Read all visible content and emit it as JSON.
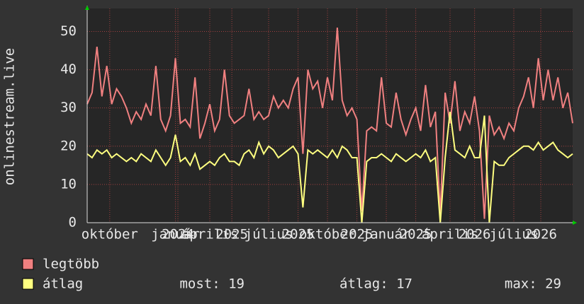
{
  "chart_data": {
    "type": "line",
    "y_label": "onlinestream.live",
    "xlim": [
      0,
      99
    ],
    "xticks": [
      {
        "value": 4.6,
        "label": "október"
      },
      {
        "value": 18,
        "label": "január"
      },
      {
        "value": 18.5,
        "label": "2024"
      },
      {
        "value": 25,
        "label": "április"
      },
      {
        "value": 29.5,
        "label": "2025"
      },
      {
        "value": 37,
        "label": "július"
      },
      {
        "value": 43,
        "label": "2025"
      },
      {
        "value": 49,
        "label": "október"
      },
      {
        "value": 55,
        "label": "2025"
      },
      {
        "value": 61,
        "label": "január"
      },
      {
        "value": 67,
        "label": "2025"
      },
      {
        "value": 74,
        "label": "április"
      },
      {
        "value": 79,
        "label": "2026"
      },
      {
        "value": 87,
        "label": "július"
      },
      {
        "value": 92.5,
        "label": "2026"
      }
    ],
    "ylim": [
      0,
      56
    ],
    "yticks": [
      0,
      10,
      20,
      30,
      40,
      50
    ],
    "grid": true,
    "series": [
      {
        "name": "legtöbb",
        "color": "#f08080",
        "values": [
          31,
          34,
          46,
          33,
          41,
          31,
          35,
          33,
          30,
          26,
          29,
          27,
          31,
          28,
          41,
          27,
          24,
          28,
          43,
          26,
          27,
          25,
          38,
          22,
          26,
          31,
          24,
          27,
          40,
          28,
          26,
          27,
          28,
          35,
          27,
          29,
          27,
          28,
          33,
          30,
          32,
          30,
          35,
          38,
          18,
          40,
          35,
          37,
          30,
          38,
          32,
          51,
          32,
          28,
          30,
          27,
          3,
          24,
          25,
          24,
          38,
          26,
          25,
          34,
          27,
          23,
          27,
          30,
          24,
          36,
          25,
          29,
          2,
          34,
          26,
          37,
          24,
          29,
          26,
          33,
          24,
          1,
          28,
          23,
          25,
          22,
          26,
          24,
          30,
          33,
          38,
          30,
          43,
          32,
          40,
          32,
          38,
          30,
          34,
          26
        ]
      },
      {
        "name": "átlag",
        "color": "#ffff80",
        "values": [
          18,
          17,
          19,
          18,
          19,
          17,
          18,
          17,
          16,
          17,
          16,
          18,
          17,
          16,
          19,
          17,
          15,
          17,
          23,
          16,
          17,
          15,
          18,
          14,
          15,
          16,
          15,
          17,
          18,
          16,
          16,
          15,
          18,
          19,
          17,
          21,
          18,
          20,
          19,
          17,
          18,
          19,
          20,
          18,
          4,
          19,
          18,
          19,
          18,
          17,
          19,
          17,
          20,
          19,
          17,
          17,
          0,
          16,
          17,
          17,
          18,
          17,
          16,
          18,
          17,
          16,
          17,
          18,
          17,
          19,
          16,
          17,
          0,
          17,
          29,
          19,
          18,
          17,
          20,
          17,
          17,
          28,
          0,
          16,
          15,
          15,
          17,
          18,
          19,
          20,
          20,
          19,
          21,
          19,
          20,
          21,
          19,
          18,
          17,
          18
        ]
      }
    ],
    "stats": [
      "most: 19",
      "átlag: 17",
      "max: 29"
    ]
  }
}
